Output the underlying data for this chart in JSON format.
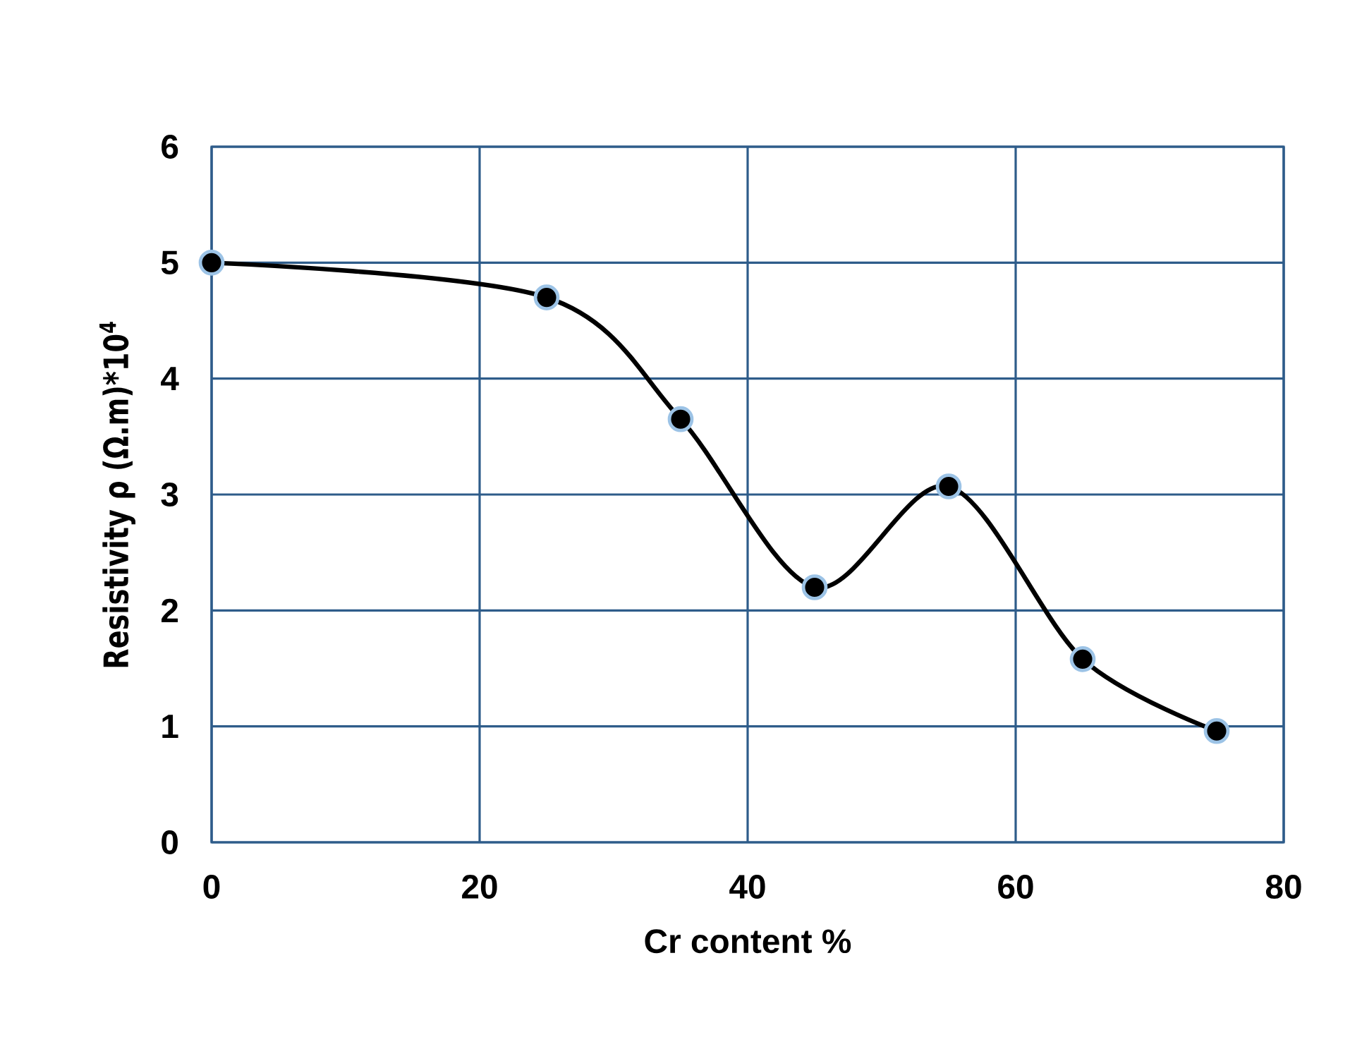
{
  "chart_data": {
    "type": "line",
    "xlabel": "Cr content %",
    "ylabel": "Resistivity ρ (Ω.m)*10$^{4}$",
    "x": [
      0,
      25,
      35,
      45,
      55,
      65,
      75
    ],
    "series": [
      {
        "color": "#000000",
        "values": [
          5.0,
          4.7,
          3.65,
          2.2,
          3.07,
          1.58,
          0.96
        ]
      }
    ],
    "xlim": [
      0,
      80
    ],
    "ylim": [
      0,
      6
    ],
    "xticks": [
      0,
      20,
      40,
      60,
      80
    ],
    "yticks": [
      0,
      1,
      2,
      3,
      4,
      5,
      6
    ],
    "grid": true,
    "marker": "circle",
    "line_style": "solid"
  }
}
